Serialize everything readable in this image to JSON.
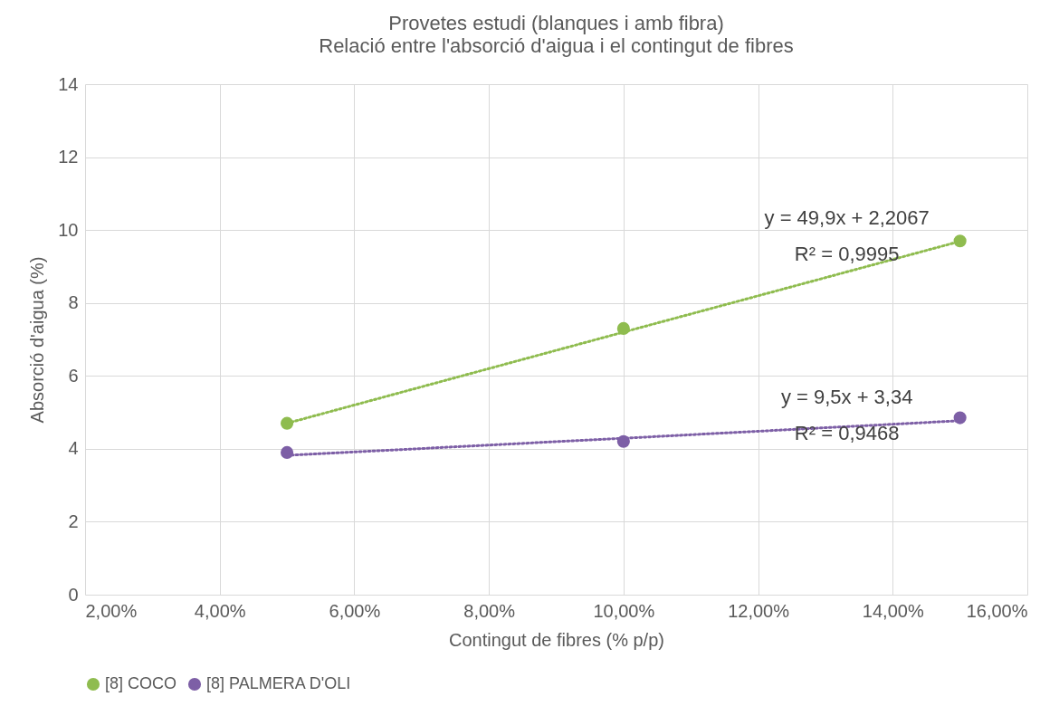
{
  "chart_data": {
    "type": "scatter",
    "title": "Provetes estudi (blanques i amb fibra)",
    "subtitle": "Relació entre l'absorció d'aigua i el contingut de fibres",
    "xlabel": "Contingut de fibres (% p/p)",
    "ylabel": "Absorció d'aigua (%)",
    "x": [
      0.05,
      0.1,
      0.15
    ],
    "series": [
      {
        "name": "[8] COCO",
        "color": "#8fbc4f",
        "values": [
          4.7,
          7.3,
          9.7
        ]
      },
      {
        "name": "[8] PALMERA D'OLI",
        "color": "#7d5fa6",
        "values": [
          3.9,
          4.2,
          4.85
        ]
      },
      {
        "type": "line",
        "color": "#8fbc4f",
        "values": [
          4.7,
          7.2,
          9.69
        ],
        "line_style": "dotted",
        "marker": "none"
      },
      {
        "type": "line",
        "color": "#7d5fa6",
        "values": [
          3.82,
          4.29,
          4.77
        ],
        "line_style": "dotted",
        "marker": "none"
      }
    ],
    "xlim": [
      0.02,
      0.16
    ],
    "xticks": [
      {
        "value": 0.02,
        "label": "2,00%"
      },
      {
        "value": 0.04,
        "label": "4,00%"
      },
      {
        "value": 0.06,
        "label": "6,00%"
      },
      {
        "value": 0.08,
        "label": "8,00%"
      },
      {
        "value": 0.1,
        "label": "10,00%"
      },
      {
        "value": 0.12,
        "label": "12,00%"
      },
      {
        "value": 0.14,
        "label": "14,00%"
      },
      {
        "value": 0.16,
        "label": "16,00%"
      }
    ],
    "ylim": [
      0,
      14
    ],
    "yticks": [
      0,
      2,
      4,
      6,
      8,
      10,
      12,
      14
    ],
    "annotations": [
      "y = 49,9x + 2,2067",
      "R² = 0,9995",
      "y = 9,5x + 3,34",
      "R² = 0,9468"
    ],
    "grid": true,
    "legend": "bottom",
    "marker": "circle"
  }
}
